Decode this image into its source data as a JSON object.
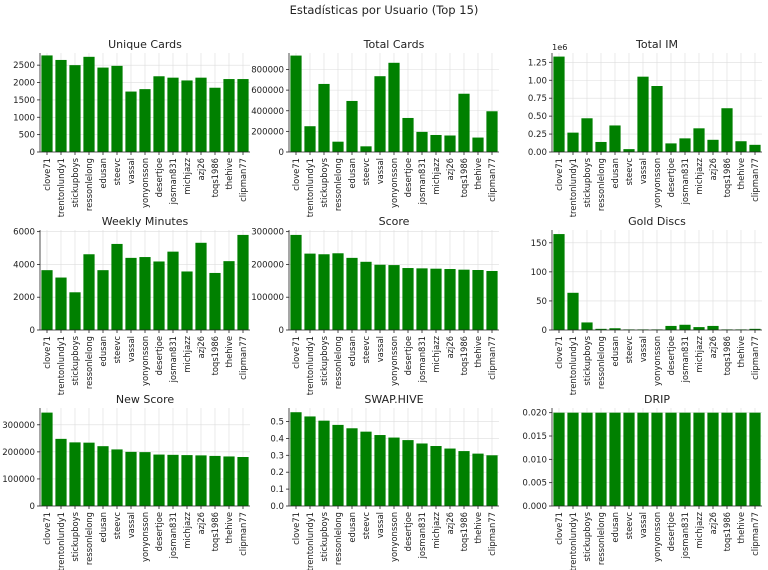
{
  "figure": {
    "suptitle": "Estadísticas por Usuario (Top 15)"
  },
  "chart_data": [
    {
      "type": "bar",
      "title": "Unique Cards",
      "categories": [
        "clove71",
        "trentonlundy1",
        "stickupboys",
        "ressonlelong",
        "edusan",
        "steevc",
        "vassal",
        "yonyonsson",
        "desertjoe",
        "josman831",
        "michjazz",
        "azj26",
        "toqs1986",
        "thehive",
        "clipman77"
      ],
      "values": [
        2780,
        2650,
        2500,
        2740,
        2430,
        2480,
        1740,
        1810,
        2180,
        2140,
        2060,
        2140,
        1850,
        2100,
        2100
      ],
      "ylim": [
        0,
        2850
      ],
      "yticks": [
        0,
        500,
        1000,
        1500,
        2000,
        2500
      ],
      "tick_labels": [
        "0",
        "500",
        "1000",
        "1500",
        "2000",
        "2500"
      ],
      "offset_label": "",
      "grid": true,
      "color": "#008000"
    },
    {
      "type": "bar",
      "title": "Total Cards",
      "categories": [
        "clove71",
        "trentonlundy1",
        "stickupboys",
        "ressonlelong",
        "edusan",
        "steevc",
        "vassal",
        "yonyonsson",
        "desertjoe",
        "josman831",
        "michjazz",
        "azj26",
        "toqs1986",
        "thehive",
        "clipman77"
      ],
      "values": [
        935000,
        250000,
        660000,
        100000,
        495000,
        55000,
        735000,
        865000,
        330000,
        195000,
        165000,
        160000,
        565000,
        140000,
        395000
      ],
      "ylim": [
        0,
        960000
      ],
      "yticks": [
        0,
        200000,
        400000,
        600000,
        800000
      ],
      "tick_labels": [
        "0",
        "200000",
        "400000",
        "600000",
        "800000"
      ],
      "offset_label": "",
      "grid": true,
      "color": "#008000"
    },
    {
      "type": "bar",
      "title": "Total IM",
      "categories": [
        "clove71",
        "trentonlundy1",
        "stickupboys",
        "ressonlelong",
        "edusan",
        "steevc",
        "vassal",
        "yonyonsson",
        "desertjoe",
        "josman831",
        "michjazz",
        "azj26",
        "toqs1986",
        "thehive",
        "clipman77"
      ],
      "values": [
        1.33,
        0.27,
        0.47,
        0.14,
        0.37,
        0.04,
        1.05,
        0.92,
        0.12,
        0.19,
        0.33,
        0.17,
        0.61,
        0.15,
        0.1
      ],
      "ylim": [
        0,
        1.38
      ],
      "yticks": [
        0,
        0.25,
        0.5,
        0.75,
        1.0,
        1.25
      ],
      "tick_labels": [
        "0.00",
        "0.25",
        "0.50",
        "0.75",
        "1.00",
        "1.25"
      ],
      "offset_label": "1e6",
      "grid": true,
      "color": "#008000"
    },
    {
      "type": "bar",
      "title": "Weekly Minutes",
      "categories": [
        "clove71",
        "trentonlundy1",
        "stickupboys",
        "ressonlelong",
        "edusan",
        "steevc",
        "vassal",
        "yonyonsson",
        "desertjoe",
        "josman831",
        "michjazz",
        "azj26",
        "toqs1986",
        "thehive",
        "clipman77"
      ],
      "values": [
        3650,
        3200,
        2300,
        4620,
        3650,
        5250,
        4400,
        4450,
        4180,
        4780,
        3570,
        5320,
        3480,
        4200,
        5800
      ],
      "ylim": [
        0,
        6100
      ],
      "yticks": [
        0,
        2000,
        4000,
        6000
      ],
      "tick_labels": [
        "0",
        "2000",
        "4000",
        "6000"
      ],
      "offset_label": "",
      "grid": true,
      "color": "#008000"
    },
    {
      "type": "bar",
      "title": "Score",
      "categories": [
        "clove71",
        "trentonlundy1",
        "stickupboys",
        "ressonlelong",
        "edusan",
        "steevc",
        "vassal",
        "yonyonsson",
        "desertjoe",
        "josman831",
        "michjazz",
        "azj26",
        "toqs1986",
        "thehive",
        "clipman77"
      ],
      "values": [
        290000,
        233000,
        231000,
        234000,
        220000,
        208000,
        199000,
        198000,
        189000,
        188000,
        187000,
        186000,
        184000,
        183000,
        180000
      ],
      "ylim": [
        0,
        305000
      ],
      "yticks": [
        0,
        100000,
        200000,
        300000
      ],
      "tick_labels": [
        "0",
        "100000",
        "200000",
        "300000"
      ],
      "offset_label": "",
      "grid": true,
      "color": "#008000"
    },
    {
      "type": "bar",
      "title": "Gold Discs",
      "categories": [
        "clove71",
        "trentonlundy1",
        "stickupboys",
        "ressonlelong",
        "edusan",
        "steevc",
        "vassal",
        "yonyonsson",
        "desertjoe",
        "josman831",
        "michjazz",
        "azj26",
        "toqs1986",
        "thehive",
        "clipman77"
      ],
      "values": [
        165,
        64,
        13,
        2,
        3,
        1,
        1,
        1,
        7,
        9,
        5,
        7,
        1,
        1,
        2
      ],
      "ylim": [
        0,
        172
      ],
      "yticks": [
        0,
        50,
        100,
        150
      ],
      "tick_labels": [
        "0",
        "50",
        "100",
        "150"
      ],
      "offset_label": "",
      "grid": true,
      "color": "#008000"
    },
    {
      "type": "bar",
      "title": "New Score",
      "categories": [
        "clove71",
        "trentonlundy1",
        "stickupboys",
        "ressonlelong",
        "edusan",
        "steevc",
        "vassal",
        "yonyonsson",
        "desertjoe",
        "josman831",
        "michjazz",
        "azj26",
        "toqs1986",
        "thehive",
        "clipman77"
      ],
      "values": [
        345000,
        248000,
        235000,
        234000,
        221000,
        209000,
        200000,
        199000,
        190000,
        189000,
        188000,
        187000,
        185000,
        183000,
        181000
      ],
      "ylim": [
        0,
        362000
      ],
      "yticks": [
        0,
        100000,
        200000,
        300000
      ],
      "tick_labels": [
        "0",
        "100000",
        "200000",
        "300000"
      ],
      "offset_label": "",
      "grid": true,
      "color": "#008000"
    },
    {
      "type": "bar",
      "title": "SWAP.HIVE",
      "categories": [
        "clove71",
        "trentonlundy1",
        "stickupboys",
        "ressonlelong",
        "edusan",
        "steevc",
        "vassal",
        "yonyonsson",
        "desertjoe",
        "josman831",
        "michjazz",
        "azj26",
        "toqs1986",
        "thehive",
        "clipman77"
      ],
      "values": [
        0.555,
        0.53,
        0.505,
        0.48,
        0.46,
        0.44,
        0.42,
        0.405,
        0.39,
        0.37,
        0.355,
        0.34,
        0.325,
        0.31,
        0.3
      ],
      "ylim": [
        0,
        0.58
      ],
      "yticks": [
        0,
        0.1,
        0.2,
        0.3,
        0.4,
        0.5
      ],
      "tick_labels": [
        "0.0",
        "0.1",
        "0.2",
        "0.3",
        "0.4",
        "0.5"
      ],
      "offset_label": "",
      "grid": true,
      "color": "#008000"
    },
    {
      "type": "bar",
      "title": "DRIP",
      "categories": [
        "clove71",
        "trentonlundy1",
        "stickupboys",
        "ressonlelong",
        "edusan",
        "steevc",
        "vassal",
        "yonyonsson",
        "desertjoe",
        "josman831",
        "michjazz",
        "azj26",
        "toqs1986",
        "thehive",
        "clipman77"
      ],
      "values": [
        0.02,
        0.02,
        0.02,
        0.02,
        0.02,
        0.02,
        0.02,
        0.02,
        0.02,
        0.02,
        0.02,
        0.02,
        0.02,
        0.02,
        0.02
      ],
      "ylim": [
        0,
        0.021
      ],
      "yticks": [
        0,
        0.005,
        0.01,
        0.015,
        0.02
      ],
      "tick_labels": [
        "0.000",
        "0.005",
        "0.010",
        "0.015",
        "0.020"
      ],
      "offset_label": "",
      "grid": true,
      "color": "#008000"
    }
  ]
}
